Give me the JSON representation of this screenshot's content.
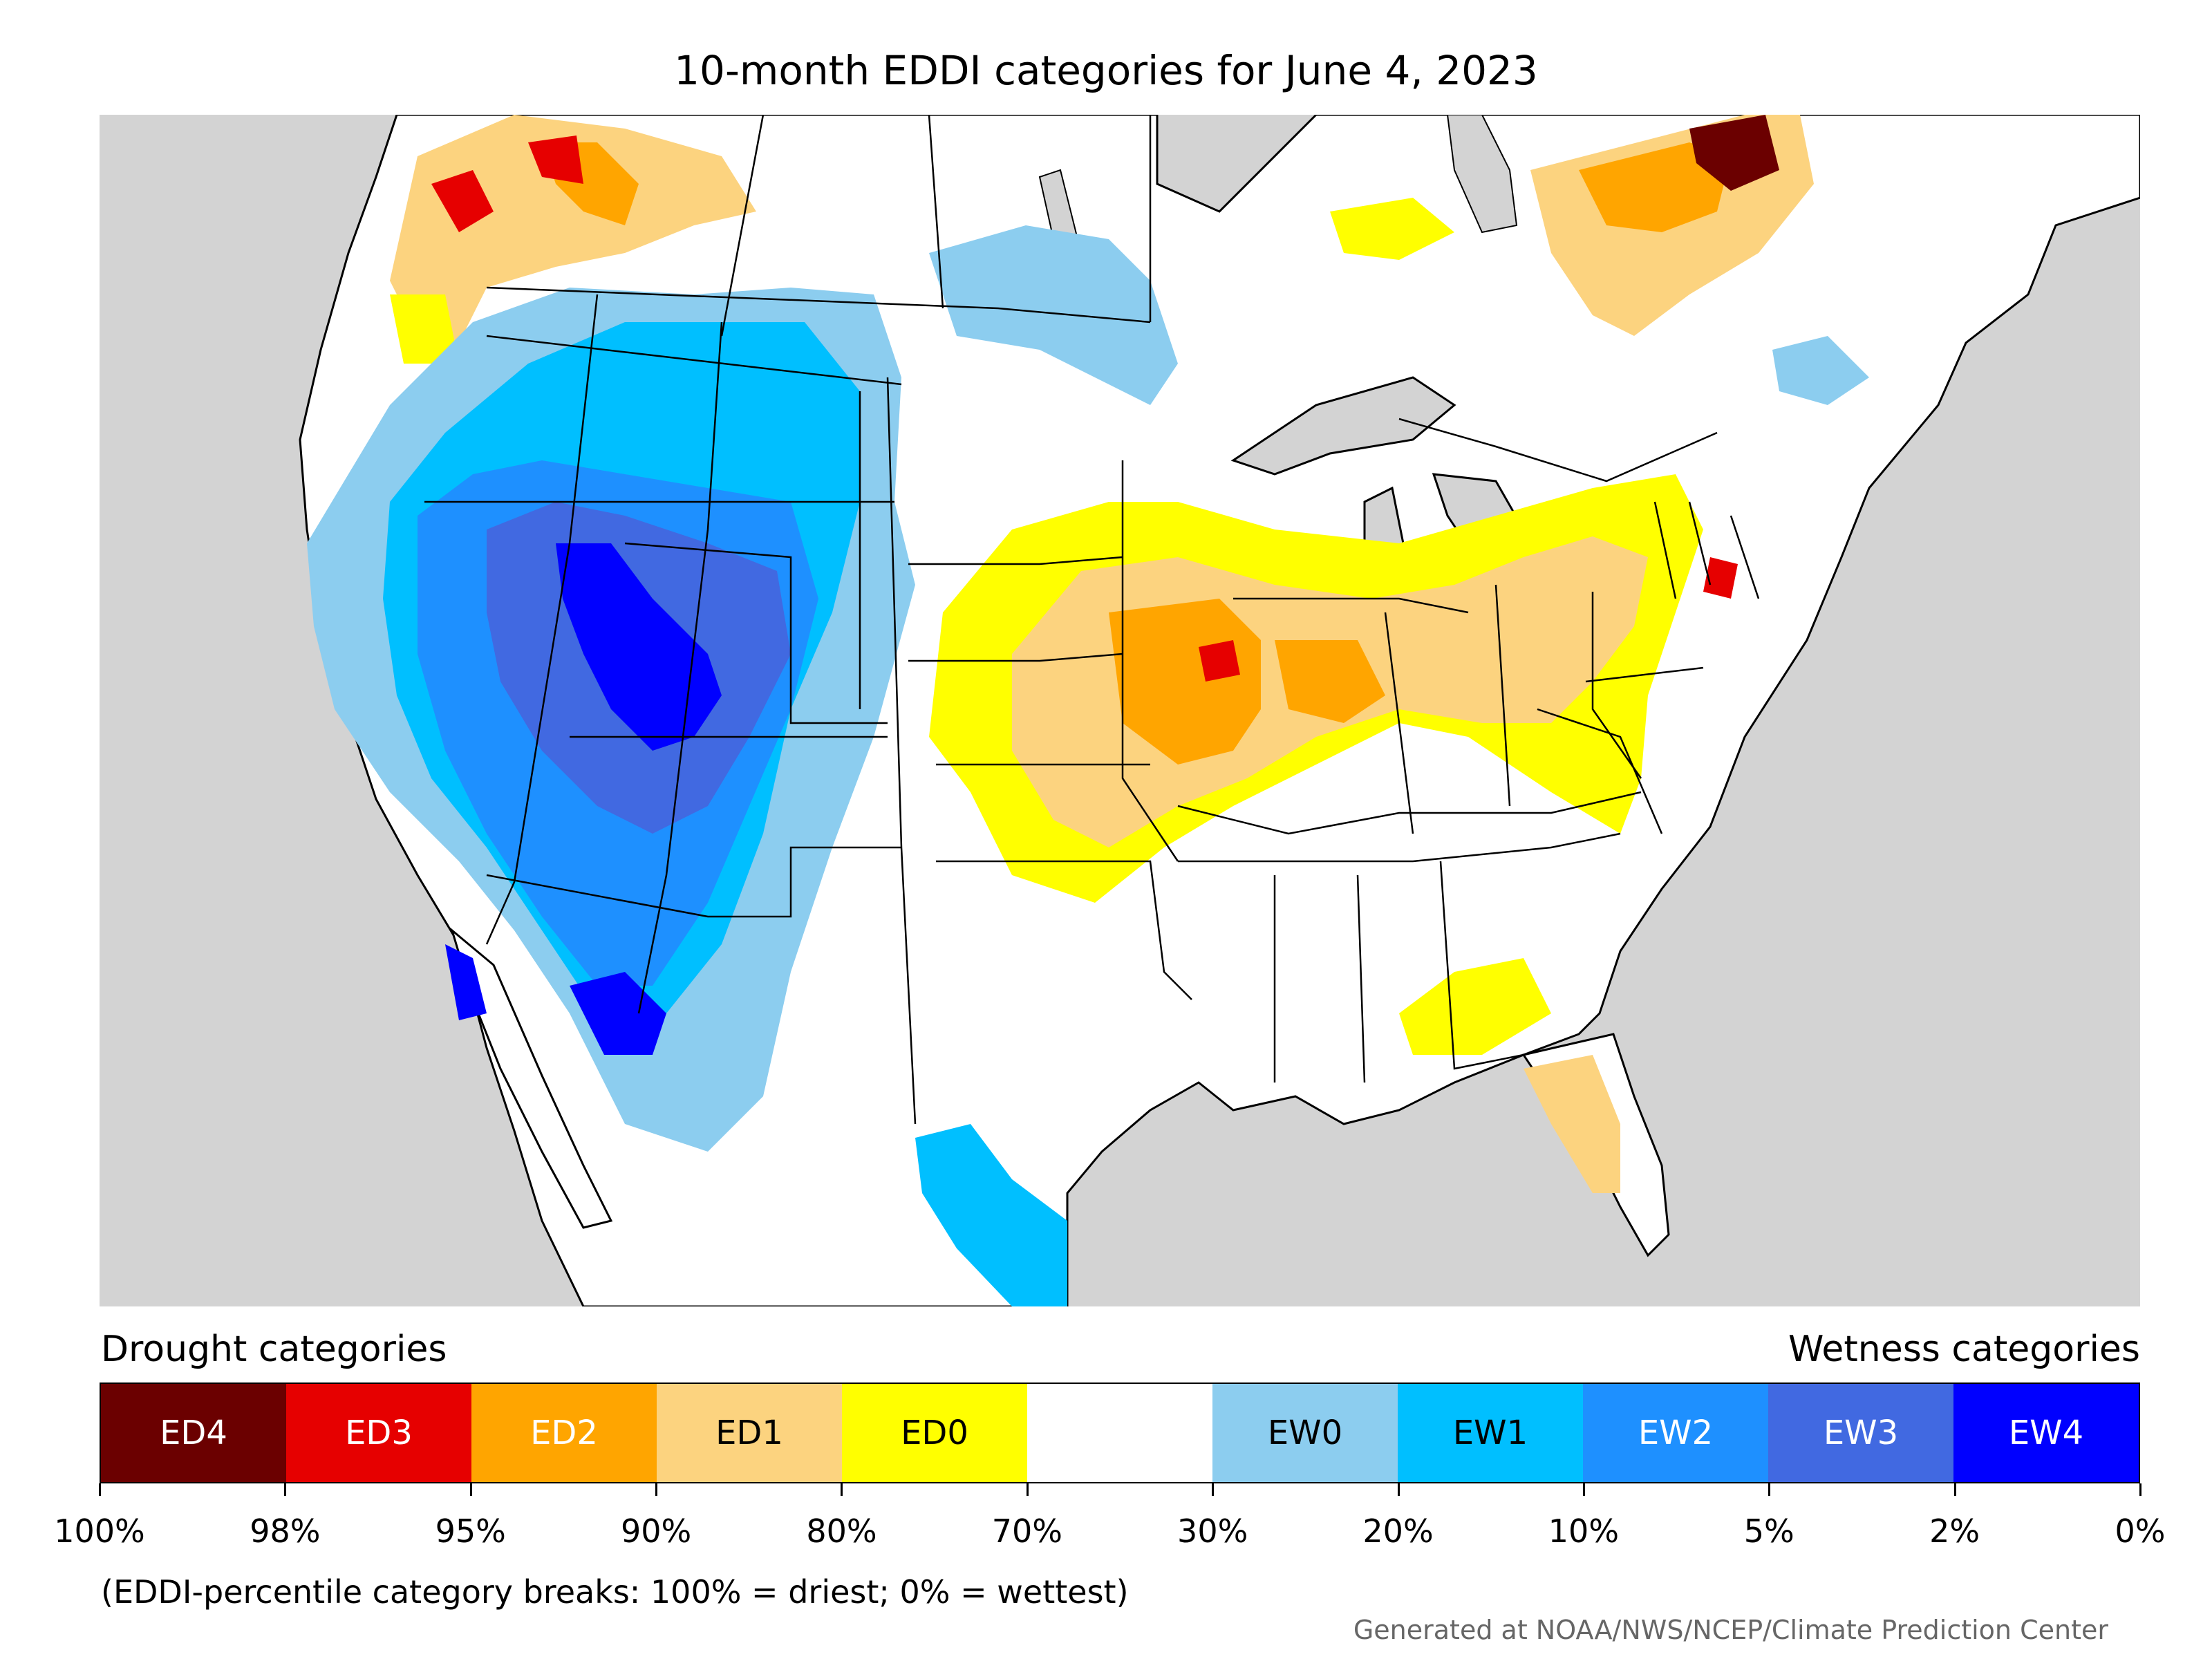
{
  "title": "10-month EDDI categories for June 4, 2023",
  "legend": {
    "drought_heading": "Drought categories",
    "wetness_heading": "Wetness categories",
    "categories": [
      {
        "label": "ED4",
        "color": "#6b0000",
        "text_color": "#ffffff"
      },
      {
        "label": "ED3",
        "color": "#e60000",
        "text_color": "#ffffff"
      },
      {
        "label": "ED2",
        "color": "#ffa500",
        "text_color": "#ffffff"
      },
      {
        "label": "ED1",
        "color": "#fcd37f",
        "text_color": "#000000"
      },
      {
        "label": "ED0",
        "color": "#ffff00",
        "text_color": "#000000"
      },
      {
        "label": "",
        "color": "#ffffff",
        "text_color": "#000000"
      },
      {
        "label": "EW0",
        "color": "#8ccdef",
        "text_color": "#000000"
      },
      {
        "label": "EW1",
        "color": "#00bfff",
        "text_color": "#000000"
      },
      {
        "label": "EW2",
        "color": "#1e90ff",
        "text_color": "#ffffff"
      },
      {
        "label": "EW3",
        "color": "#4169e1",
        "text_color": "#ffffff"
      },
      {
        "label": "EW4",
        "color": "#0000ff",
        "text_color": "#ffffff"
      }
    ],
    "breaks": [
      "100%",
      "98%",
      "95%",
      "90%",
      "80%",
      "70%",
      "30%",
      "20%",
      "10%",
      "5%",
      "2%",
      "0%"
    ]
  },
  "note": "(EDDI-percentile category breaks: 100% = driest; 0% = wettest)",
  "credit": "Generated at NOAA/NWS/NCEP/Climate Prediction Center",
  "map_colors": {
    "ocean": "#d3d3d3",
    "land": "#ffffff",
    "border": "#000000"
  }
}
